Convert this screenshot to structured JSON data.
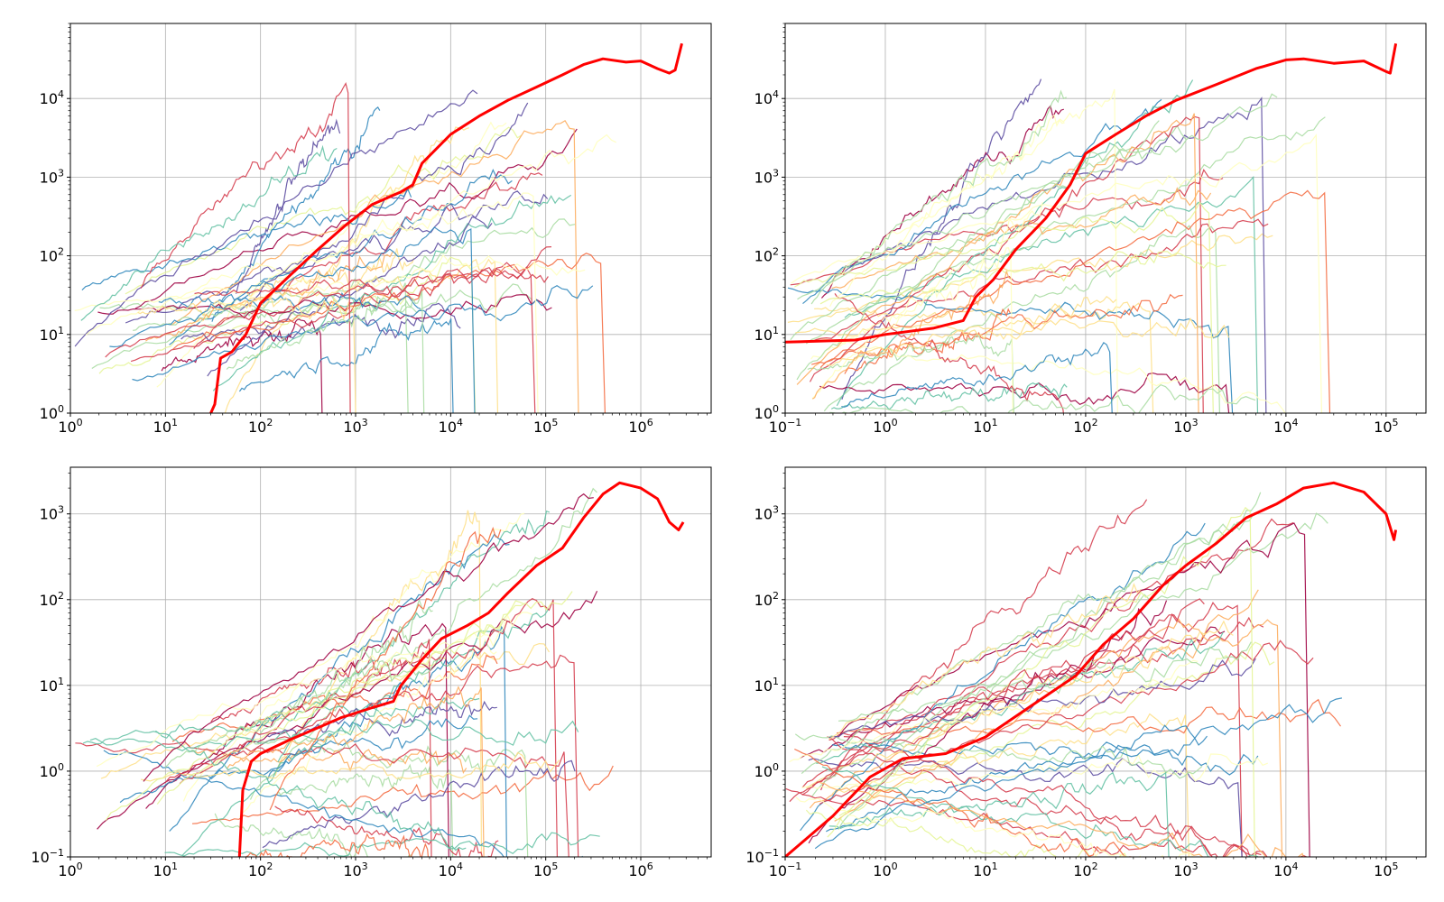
{
  "chart_data": [
    {
      "type": "line",
      "title": "",
      "xlabel": "",
      "ylabel": "",
      "xscale": "log",
      "yscale": "log",
      "xlim": [
        1,
        5500000
      ],
      "ylim": [
        1,
        90000
      ],
      "xticks": [
        {
          "value": 1,
          "base": "10",
          "exp": "0"
        },
        {
          "value": 10,
          "base": "10",
          "exp": "1"
        },
        {
          "value": 100,
          "base": "10",
          "exp": "2"
        },
        {
          "value": 1000,
          "base": "10",
          "exp": "3"
        },
        {
          "value": 10000,
          "base": "10",
          "exp": "4"
        },
        {
          "value": 100000,
          "base": "10",
          "exp": "5"
        },
        {
          "value": 1000000,
          "base": "10",
          "exp": "6"
        }
      ],
      "yticks": [
        {
          "value": 1,
          "base": "10",
          "exp": "0"
        },
        {
          "value": 10,
          "base": "10",
          "exp": "1"
        },
        {
          "value": 100,
          "base": "10",
          "exp": "2"
        },
        {
          "value": 1000,
          "base": "10",
          "exp": "3"
        },
        {
          "value": 10000,
          "base": "10",
          "exp": "4"
        }
      ],
      "grid": true,
      "legend": "none",
      "highlight": {
        "color": "#ff0000",
        "points": [
          [
            30,
            1.0
          ],
          [
            33,
            1.3
          ],
          [
            38,
            5
          ],
          [
            50,
            6
          ],
          [
            60,
            8
          ],
          [
            70,
            10
          ],
          [
            100,
            25
          ],
          [
            200,
            55
          ],
          [
            400,
            120
          ],
          [
            800,
            250
          ],
          [
            1500,
            450
          ],
          [
            3000,
            650
          ],
          [
            4000,
            800
          ],
          [
            5000,
            1500
          ],
          [
            10000,
            3500
          ],
          [
            20000,
            6000
          ],
          [
            40000,
            9500
          ],
          [
            80000,
            14000
          ],
          [
            150000,
            20000
          ],
          [
            250000,
            27000
          ],
          [
            400000,
            32000
          ],
          [
            700000,
            29000
          ],
          [
            1000000,
            30000
          ],
          [
            1500000,
            24000
          ],
          [
            2000000,
            21000
          ],
          [
            2300000,
            23000
          ],
          [
            2700000,
            50000
          ]
        ]
      },
      "background_series": {
        "count": 40,
        "colormap": "Spectral",
        "end_x": [
          500,
          800,
          2000,
          5000,
          10000,
          20000,
          40000,
          60000,
          100000,
          150000,
          250000,
          400000
        ],
        "end_y": [
          20,
          60,
          100,
          300,
          600,
          1000,
          3000,
          7000,
          9500
        ]
      }
    },
    {
      "type": "line",
      "title": "",
      "xlabel": "",
      "ylabel": "",
      "xscale": "log",
      "yscale": "log",
      "xlim": [
        0.1,
        250000
      ],
      "ylim": [
        1,
        90000
      ],
      "xticks": [
        {
          "value": 0.1,
          "base": "10",
          "exp": "−1"
        },
        {
          "value": 1,
          "base": "10",
          "exp": "0"
        },
        {
          "value": 10,
          "base": "10",
          "exp": "1"
        },
        {
          "value": 100,
          "base": "10",
          "exp": "2"
        },
        {
          "value": 1000,
          "base": "10",
          "exp": "3"
        },
        {
          "value": 10000,
          "base": "10",
          "exp": "4"
        },
        {
          "value": 100000,
          "base": "10",
          "exp": "5"
        }
      ],
      "yticks": [
        {
          "value": 1,
          "base": "10",
          "exp": "0"
        },
        {
          "value": 10,
          "base": "10",
          "exp": "1"
        },
        {
          "value": 100,
          "base": "10",
          "exp": "2"
        },
        {
          "value": 1000,
          "base": "10",
          "exp": "3"
        },
        {
          "value": 10000,
          "base": "10",
          "exp": "4"
        }
      ],
      "grid": true,
      "legend": "none",
      "highlight": {
        "color": "#ff0000",
        "points": [
          [
            0.1,
            8
          ],
          [
            0.5,
            8.5
          ],
          [
            1,
            10
          ],
          [
            3,
            12
          ],
          [
            6,
            15
          ],
          [
            8,
            30
          ],
          [
            12,
            50
          ],
          [
            20,
            120
          ],
          [
            40,
            300
          ],
          [
            70,
            800
          ],
          [
            100,
            2000
          ],
          [
            200,
            3500
          ],
          [
            400,
            6000
          ],
          [
            800,
            9500
          ],
          [
            2000,
            15000
          ],
          [
            5000,
            24000
          ],
          [
            10000,
            31000
          ],
          [
            15000,
            32000
          ],
          [
            30000,
            28000
          ],
          [
            60000,
            30000
          ],
          [
            100000,
            22000
          ],
          [
            110000,
            21000
          ],
          [
            125000,
            50000
          ]
        ]
      },
      "background_series": {
        "count": 40,
        "colormap": "Spectral",
        "end_x": [
          15,
          50,
          200,
          500,
          1000,
          2000,
          3000,
          5000,
          10000,
          30000
        ],
        "end_y": [
          1.5,
          6,
          20,
          80,
          300,
          800,
          3000,
          6000,
          10000
        ]
      }
    },
    {
      "type": "line",
      "title": "",
      "xlabel": "",
      "ylabel": "",
      "xscale": "log",
      "yscale": "log",
      "xlim": [
        1,
        5500000
      ],
      "ylim": [
        0.1,
        3500
      ],
      "xticks": [
        {
          "value": 1,
          "base": "10",
          "exp": "0"
        },
        {
          "value": 10,
          "base": "10",
          "exp": "1"
        },
        {
          "value": 100,
          "base": "10",
          "exp": "2"
        },
        {
          "value": 1000,
          "base": "10",
          "exp": "3"
        },
        {
          "value": 10000,
          "base": "10",
          "exp": "4"
        },
        {
          "value": 100000,
          "base": "10",
          "exp": "5"
        },
        {
          "value": 1000000,
          "base": "10",
          "exp": "6"
        }
      ],
      "yticks": [
        {
          "value": 0.1,
          "base": "10",
          "exp": "−1"
        },
        {
          "value": 1,
          "base": "10",
          "exp": "0"
        },
        {
          "value": 10,
          "base": "10",
          "exp": "1"
        },
        {
          "value": 100,
          "base": "10",
          "exp": "2"
        },
        {
          "value": 1000,
          "base": "10",
          "exp": "3"
        }
      ],
      "grid": true,
      "legend": "none",
      "highlight": {
        "color": "#ff0000",
        "points": [
          [
            60,
            0.1
          ],
          [
            65,
            0.6
          ],
          [
            80,
            1.3
          ],
          [
            100,
            1.6
          ],
          [
            200,
            2.3
          ],
          [
            400,
            3.2
          ],
          [
            700,
            4.2
          ],
          [
            1500,
            5.5
          ],
          [
            2500,
            6.5
          ],
          [
            3000,
            10
          ],
          [
            5000,
            20
          ],
          [
            8000,
            35
          ],
          [
            15000,
            50
          ],
          [
            25000,
            70
          ],
          [
            40000,
            120
          ],
          [
            80000,
            250
          ],
          [
            150000,
            400
          ],
          [
            250000,
            900
          ],
          [
            400000,
            1700
          ],
          [
            600000,
            2300
          ],
          [
            1000000,
            2000
          ],
          [
            1500000,
            1500
          ],
          [
            2000000,
            800
          ],
          [
            2500000,
            650
          ],
          [
            2800000,
            800
          ]
        ]
      },
      "background_series": {
        "count": 40,
        "colormap": "Spectral",
        "end_x": [
          8000,
          20000,
          40000,
          80000,
          150000,
          250000,
          450000
        ],
        "end_y": [
          0.1,
          1,
          5,
          20,
          50,
          100,
          1000
        ]
      }
    },
    {
      "type": "line",
      "title": "",
      "xlabel": "",
      "ylabel": "",
      "xscale": "log",
      "yscale": "log",
      "xlim": [
        0.1,
        250000
      ],
      "ylim": [
        0.1,
        3500
      ],
      "xticks": [
        {
          "value": 0.1,
          "base": "10",
          "exp": "−1"
        },
        {
          "value": 1,
          "base": "10",
          "exp": "0"
        },
        {
          "value": 10,
          "base": "10",
          "exp": "1"
        },
        {
          "value": 100,
          "base": "10",
          "exp": "2"
        },
        {
          "value": 1000,
          "base": "10",
          "exp": "3"
        },
        {
          "value": 10000,
          "base": "10",
          "exp": "4"
        },
        {
          "value": 100000,
          "base": "10",
          "exp": "5"
        }
      ],
      "yticks": [
        {
          "value": 0.1,
          "base": "10",
          "exp": "−1"
        },
        {
          "value": 1,
          "base": "10",
          "exp": "0"
        },
        {
          "value": 10,
          "base": "10",
          "exp": "1"
        },
        {
          "value": 100,
          "base": "10",
          "exp": "2"
        },
        {
          "value": 1000,
          "base": "10",
          "exp": "3"
        }
      ],
      "grid": true,
      "legend": "none",
      "highlight": {
        "color": "#ff0000",
        "points": [
          [
            0.1,
            0.1
          ],
          [
            0.3,
            0.3
          ],
          [
            0.7,
            0.85
          ],
          [
            1.5,
            1.4
          ],
          [
            4,
            1.6
          ],
          [
            10,
            2.5
          ],
          [
            30,
            6
          ],
          [
            80,
            13
          ],
          [
            150,
            30
          ],
          [
            300,
            60
          ],
          [
            600,
            150
          ],
          [
            1000,
            250
          ],
          [
            2000,
            450
          ],
          [
            4000,
            900
          ],
          [
            8000,
            1300
          ],
          [
            15000,
            2000
          ],
          [
            30000,
            2300
          ],
          [
            60000,
            1800
          ],
          [
            100000,
            1000
          ],
          [
            120000,
            500
          ],
          [
            125000,
            650
          ]
        ]
      },
      "background_series": {
        "count": 40,
        "colormap": "Spectral",
        "end_x": [
          500,
          1500,
          3000,
          5000,
          7000,
          15000,
          30000
        ],
        "end_y": [
          0.1,
          1,
          5,
          20,
          50,
          100,
          1000
        ]
      }
    }
  ]
}
